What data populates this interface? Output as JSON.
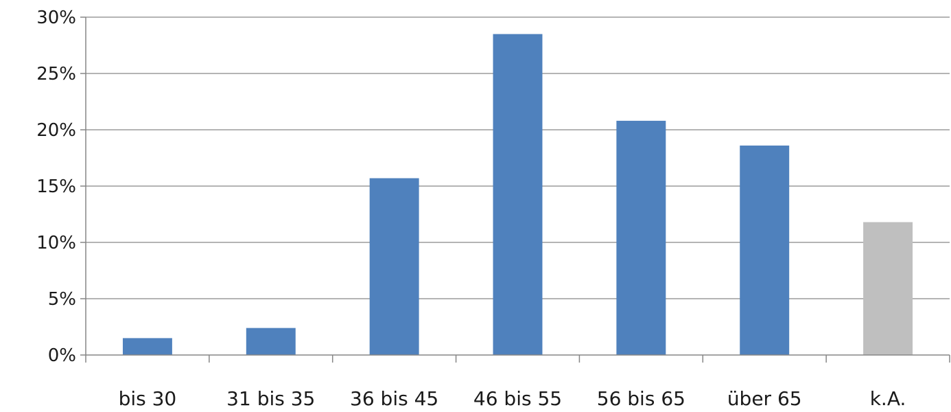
{
  "chart_data": {
    "type": "bar",
    "categories": [
      "bis 30",
      "31 bis 35",
      "36 bis 45",
      "46 bis 55",
      "56 bis 65",
      "über 65",
      "k.A."
    ],
    "values": [
      1.5,
      2.4,
      15.7,
      28.5,
      20.8,
      18.6,
      11.8
    ],
    "bar_colors": [
      "#4f81bd",
      "#4f81bd",
      "#4f81bd",
      "#4f81bd",
      "#4f81bd",
      "#4f81bd",
      "#bfbfbf"
    ],
    "y_ticks": [
      0,
      5,
      10,
      15,
      20,
      25,
      30
    ],
    "y_tick_labels": [
      "0%",
      "5%",
      "10%",
      "15%",
      "20%",
      "25%",
      "30%"
    ],
    "ylim": [
      0,
      30
    ],
    "grid": true,
    "legend": "none",
    "title": "",
    "xlabel": "",
    "ylabel": ""
  }
}
